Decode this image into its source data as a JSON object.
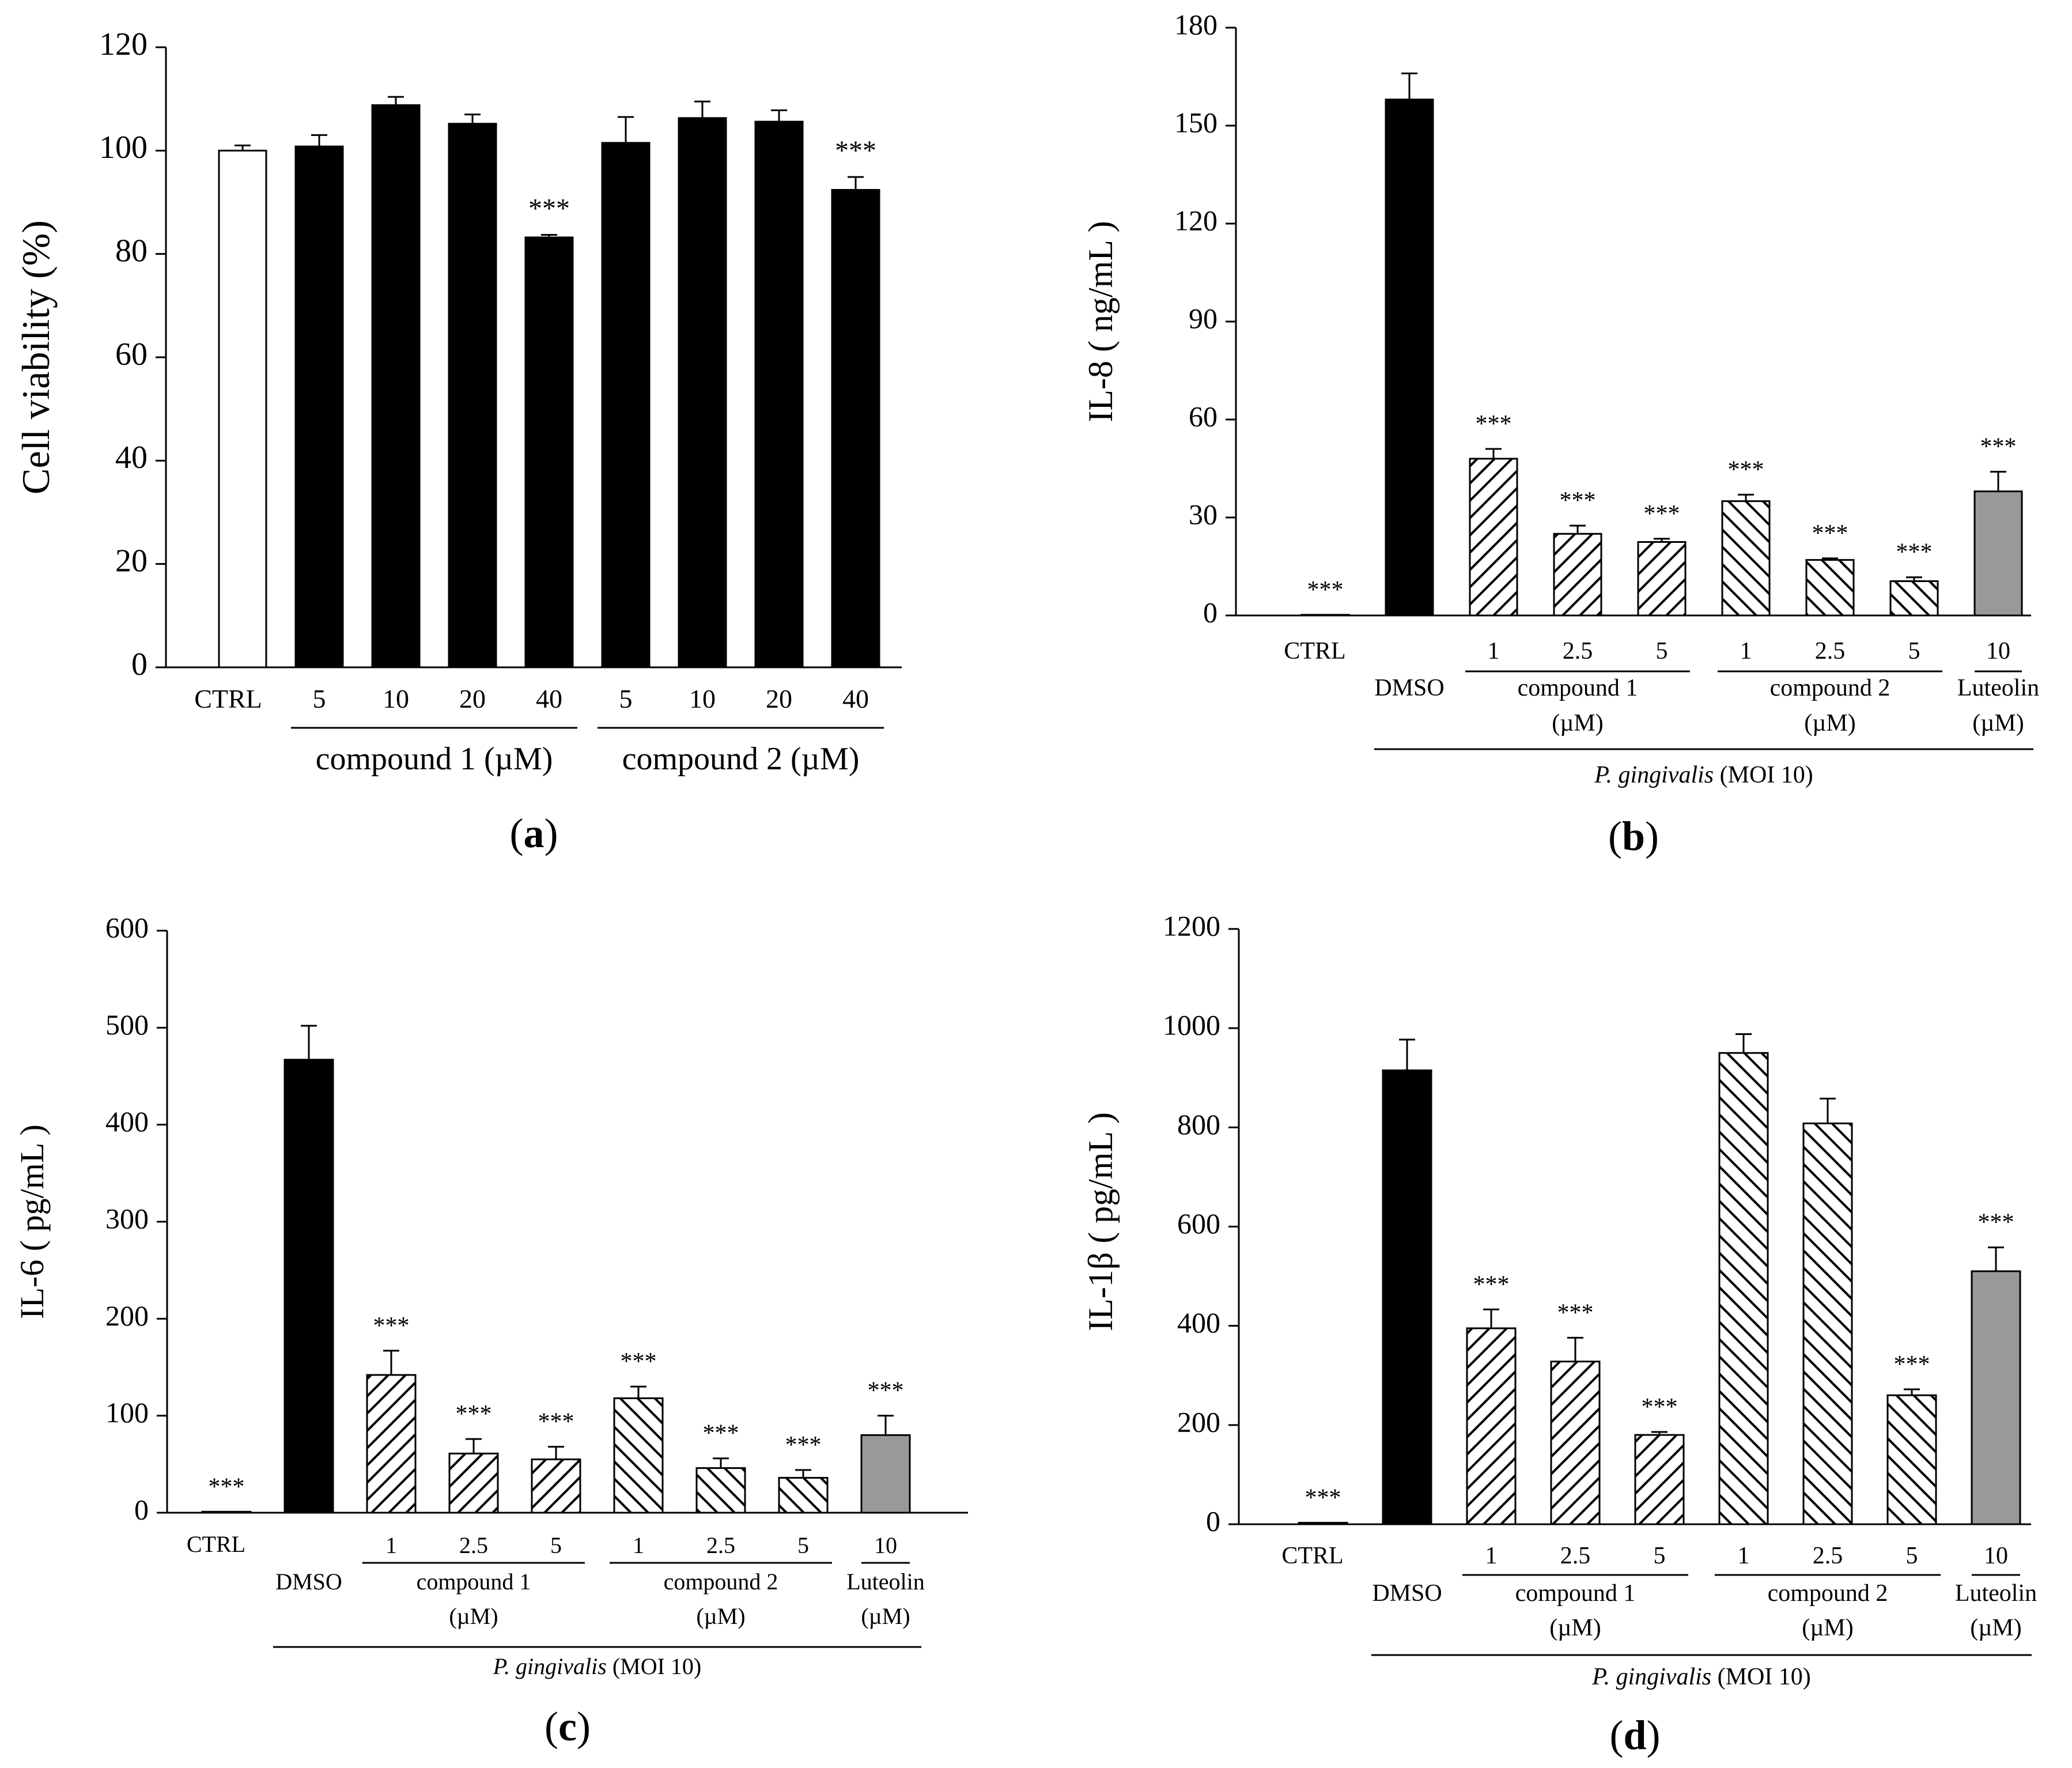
{
  "colors": {
    "white": "#ffffff",
    "black": "#000000",
    "gray": "#999999"
  },
  "chart_data": [
    {
      "id": "a",
      "type": "bar",
      "panel_label": "a",
      "ylabel": "Cell viability (%)",
      "ylim": [
        0,
        120
      ],
      "yticks": [
        0,
        20,
        40,
        60,
        80,
        100,
        120
      ],
      "categories": [
        "CTRL",
        "5",
        "10",
        "20",
        "40",
        "5",
        "10",
        "20",
        "40"
      ],
      "values": [
        100,
        100.8,
        108.8,
        105.2,
        83.2,
        101.5,
        106.3,
        105.6,
        92.4
      ],
      "errors": [
        1,
        2.2,
        1.6,
        1.8,
        0.5,
        5,
        3.2,
        2.2,
        2.5
      ],
      "fills": [
        "white",
        "black",
        "black",
        "black",
        "black",
        "black",
        "black",
        "black",
        "black"
      ],
      "significance": [
        "",
        "",
        "",
        "",
        "***",
        "",
        "",
        "",
        "***"
      ],
      "groups": [
        {
          "label": "compound 1 (µM)",
          "from": 1,
          "to": 4
        },
        {
          "label": "compound 2 (µM)",
          "from": 5,
          "to": 8
        }
      ]
    },
    {
      "id": "b",
      "type": "bar",
      "panel_label": "b",
      "ylabel": "IL-8 ( ng/mL )",
      "ylim": [
        0,
        180
      ],
      "yticks": [
        0,
        30,
        60,
        90,
        120,
        150,
        180
      ],
      "categories": [
        "CTRL",
        "DMSO",
        "1",
        "2.5",
        "5",
        "1",
        "2.5",
        "5",
        "10"
      ],
      "values": [
        0.2,
        158,
        48,
        25,
        22.5,
        35,
        17,
        10.5,
        38
      ],
      "errors": [
        0,
        8,
        3,
        2.5,
        1,
        2,
        0.5,
        1.2,
        6
      ],
      "fills": [
        "white",
        "black",
        "hatch-fwd",
        "hatch-fwd",
        "hatch-fwd",
        "hatch-back",
        "hatch-back",
        "hatch-back",
        "gray"
      ],
      "significance": [
        "***",
        "",
        "***",
        "***",
        "***",
        "***",
        "***",
        "***",
        "***"
      ],
      "groups": [
        {
          "label": "compound 1",
          "label2": "(µM)",
          "from": 2,
          "to": 4
        },
        {
          "label": "compound 2",
          "label2": "(µM)",
          "from": 5,
          "to": 7
        },
        {
          "label": "Luteolin",
          "label2": "(µM)",
          "from": 8,
          "to": 8
        }
      ],
      "treatment": {
        "italic": "P. gingivalis",
        "plain": " (MOI 10)"
      }
    },
    {
      "id": "c",
      "type": "bar",
      "panel_label": "c",
      "ylabel": "IL-6 ( pg/mL )",
      "ylim": [
        0,
        600
      ],
      "yticks": [
        0,
        100,
        200,
        300,
        400,
        500,
        600
      ],
      "categories": [
        "CTRL",
        "DMSO",
        "1",
        "2.5",
        "5",
        "1",
        "2.5",
        "5",
        "10"
      ],
      "values": [
        1,
        467,
        142,
        61,
        55,
        118,
        46,
        36,
        80
      ],
      "errors": [
        0,
        35,
        25,
        15,
        13,
        12,
        10,
        8,
        20
      ],
      "fills": [
        "white",
        "black",
        "hatch-fwd",
        "hatch-fwd",
        "hatch-fwd",
        "hatch-back",
        "hatch-back",
        "hatch-back",
        "gray"
      ],
      "significance": [
        "***",
        "",
        "***",
        "***",
        "***",
        "***",
        "***",
        "***",
        "***"
      ],
      "groups": [
        {
          "label": "compound 1",
          "label2": "(µM)",
          "from": 2,
          "to": 4
        },
        {
          "label": "compound 2",
          "label2": "(µM)",
          "from": 5,
          "to": 7
        },
        {
          "label": "Luteolin",
          "label2": "(µM)",
          "from": 8,
          "to": 8
        }
      ],
      "treatment": {
        "italic": "P. gingivalis",
        "plain": " (MOI 10)"
      }
    },
    {
      "id": "d",
      "type": "bar",
      "panel_label": "d",
      "ylabel": "IL-1β ( pg/mL )",
      "ylim": [
        0,
        1200
      ],
      "yticks": [
        0,
        200,
        400,
        600,
        800,
        1000,
        1200
      ],
      "categories": [
        "CTRL",
        "DMSO",
        "1",
        "2.5",
        "5",
        "1",
        "2.5",
        "5",
        "10"
      ],
      "values": [
        3,
        915,
        395,
        328,
        180,
        950,
        808,
        260,
        510
      ],
      "errors": [
        0,
        62,
        38,
        48,
        6,
        38,
        50,
        12,
        48
      ],
      "fills": [
        "white",
        "black",
        "hatch-fwd",
        "hatch-fwd",
        "hatch-fwd",
        "hatch-back",
        "hatch-back",
        "hatch-back",
        "gray"
      ],
      "significance": [
        "***",
        "",
        "***",
        "***",
        "***",
        "",
        "",
        "***",
        "***"
      ],
      "groups": [
        {
          "label": "compound 1",
          "label2": "(µM)",
          "from": 2,
          "to": 4
        },
        {
          "label": "compound 2",
          "label2": "(µM)",
          "from": 5,
          "to": 7
        },
        {
          "label": "Luteolin",
          "label2": "(µM)",
          "from": 8,
          "to": 8
        }
      ],
      "treatment": {
        "italic": "P. gingivalis",
        "plain": " (MOI 10)"
      }
    }
  ]
}
